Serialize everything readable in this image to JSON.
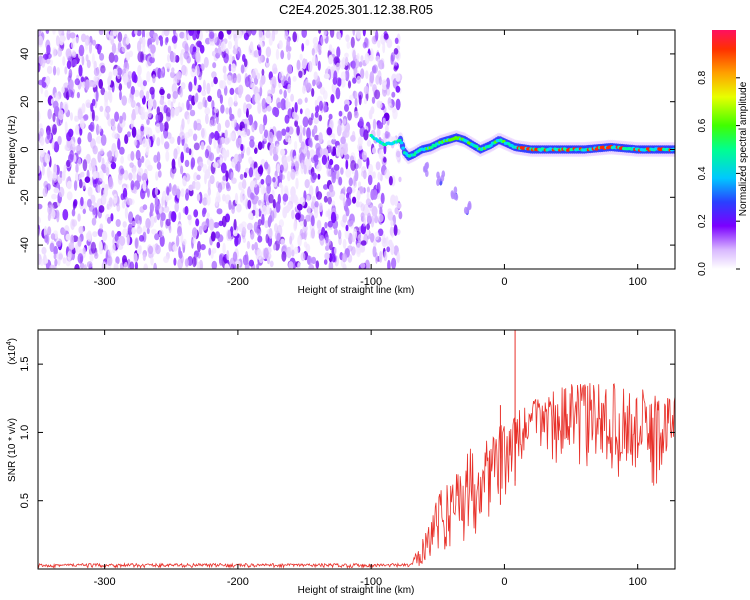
{
  "title": "C2E4.2025.301.12.38.R05",
  "chart_data": [
    {
      "type": "heatmap",
      "name": "spectrogram",
      "xlabel": "Height of straight line (km)",
      "ylabel": "Frequency (Hz)",
      "xlim": [
        -350,
        128
      ],
      "ylim": [
        -50,
        50
      ],
      "x_ticks": [
        -300,
        -200,
        -100,
        0,
        100
      ],
      "x_tick_labels": [
        "-300",
        "-200",
        "-100",
        "0",
        "100"
      ],
      "y_ticks": [
        -40,
        -20,
        0,
        20,
        40
      ],
      "y_tick_labels": [
        "-40",
        "-20",
        "0",
        "20",
        "40"
      ],
      "noise_region_km": [
        -350,
        -78
      ],
      "ridge": [
        {
          "x": -100,
          "y": 6
        },
        {
          "x": -96,
          "y": 4
        },
        {
          "x": -90,
          "y": 2
        },
        {
          "x": -82,
          "y": 3
        },
        {
          "x": -78,
          "y": 4
        },
        {
          "x": -75,
          "y": -1
        },
        {
          "x": -72,
          "y": -3
        },
        {
          "x": -68,
          "y": -2
        },
        {
          "x": -62,
          "y": 0
        },
        {
          "x": -55,
          "y": 1
        },
        {
          "x": -48,
          "y": 3
        },
        {
          "x": -42,
          "y": 4
        },
        {
          "x": -36,
          "y": 5
        },
        {
          "x": -30,
          "y": 4
        },
        {
          "x": -24,
          "y": 2
        },
        {
          "x": -18,
          "y": 0
        },
        {
          "x": -10,
          "y": 2
        },
        {
          "x": -4,
          "y": 4
        },
        {
          "x": 0,
          "y": 3
        },
        {
          "x": 8,
          "y": 1
        },
        {
          "x": 20,
          "y": 0
        },
        {
          "x": 40,
          "y": 0
        },
        {
          "x": 60,
          "y": 0
        },
        {
          "x": 80,
          "y": 1
        },
        {
          "x": 100,
          "y": 0
        },
        {
          "x": 128,
          "y": 0
        }
      ],
      "secondary_branch": [
        {
          "x": -60,
          "y": -8
        },
        {
          "x": -48,
          "y": -12
        },
        {
          "x": -38,
          "y": -18
        },
        {
          "x": -28,
          "y": -24
        }
      ],
      "colorbar": {
        "label": "Normalized spectral amplitude",
        "range": [
          0,
          1
        ],
        "ticks": [
          0.0,
          0.2,
          0.4,
          0.6,
          0.8
        ],
        "tick_labels": [
          "0.0",
          "0.2",
          "0.4",
          "0.6",
          "0.8"
        ]
      }
    },
    {
      "type": "line",
      "name": "snr",
      "xlabel": "Height of straight line (km)",
      "ylabel": "SNR (10 * v/v)",
      "scale_label": "(x10",
      "scale_exponent": "4",
      "scale_close": ")",
      "color": "#e8312a",
      "xlim": [
        -350,
        128
      ],
      "ylim": [
        0,
        1.75
      ],
      "x_ticks": [
        -300,
        -200,
        -100,
        0,
        100
      ],
      "x_tick_labels": [
        "-300",
        "-200",
        "-100",
        "0",
        "100"
      ],
      "y_ticks": [
        0.5,
        1.0,
        1.5
      ],
      "y_tick_labels": [
        "0.5",
        "1.0",
        "1.5"
      ],
      "envelope": [
        {
          "x": -350,
          "lo": 0.01,
          "hi": 0.04
        },
        {
          "x": -70,
          "lo": 0.01,
          "hi": 0.04
        },
        {
          "x": -62,
          "lo": 0.02,
          "hi": 0.22
        },
        {
          "x": -55,
          "lo": 0.05,
          "hi": 0.45
        },
        {
          "x": -45,
          "lo": 0.1,
          "hi": 0.62
        },
        {
          "x": -35,
          "lo": 0.15,
          "hi": 0.78
        },
        {
          "x": -25,
          "lo": 0.2,
          "hi": 0.9
        },
        {
          "x": -15,
          "lo": 0.3,
          "hi": 0.98
        },
        {
          "x": -5,
          "lo": 0.45,
          "hi": 1.05
        },
        {
          "x": 5,
          "lo": 0.55,
          "hi": 1.1
        },
        {
          "x": 15,
          "lo": 0.75,
          "hi": 1.2
        },
        {
          "x": 25,
          "lo": 0.85,
          "hi": 1.28
        },
        {
          "x": 40,
          "lo": 0.75,
          "hi": 1.33
        },
        {
          "x": 60,
          "lo": 0.7,
          "hi": 1.38
        },
        {
          "x": 80,
          "lo": 0.7,
          "hi": 1.36
        },
        {
          "x": 100,
          "lo": 0.6,
          "hi": 1.32
        },
        {
          "x": 115,
          "lo": 0.5,
          "hi": 1.3
        },
        {
          "x": 128,
          "lo": 0.9,
          "hi": 1.28
        }
      ],
      "spikes": [
        {
          "x": 8,
          "y": 1.75
        },
        {
          "x": -3,
          "y": 1.2
        }
      ]
    }
  ]
}
